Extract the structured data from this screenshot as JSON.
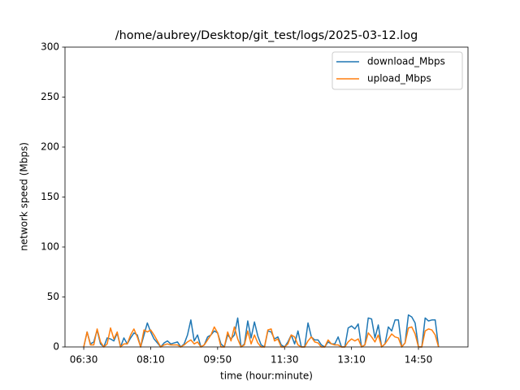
{
  "chart_data": {
    "type": "line",
    "title": "/home/aubrey/Desktop/git_test/logs/2025-03-12.log",
    "xlabel": "time (hour:minute)",
    "ylabel": "network speed (Mbps)",
    "x": [
      "06:30",
      "06:35",
      "06:40",
      "06:45",
      "06:50",
      "06:55",
      "07:00",
      "07:05",
      "07:10",
      "07:15",
      "07:20",
      "07:25",
      "07:30",
      "07:35",
      "07:40",
      "07:45",
      "07:50",
      "07:55",
      "08:00",
      "08:05",
      "08:10",
      "08:15",
      "08:20",
      "08:25",
      "08:30",
      "08:35",
      "08:40",
      "08:45",
      "08:50",
      "08:55",
      "09:00",
      "09:05",
      "09:10",
      "09:15",
      "09:20",
      "09:25",
      "09:30",
      "09:35",
      "09:40",
      "09:45",
      "09:50",
      "09:55",
      "10:00",
      "10:05",
      "10:10",
      "10:15",
      "10:20",
      "10:25",
      "10:30",
      "10:35",
      "10:40",
      "10:45",
      "10:50",
      "10:55",
      "11:00",
      "11:05",
      "11:10",
      "11:15",
      "11:20",
      "11:25",
      "11:30",
      "11:35",
      "11:40",
      "11:45",
      "11:50",
      "11:55",
      "12:00",
      "12:05",
      "12:10",
      "12:15",
      "12:20",
      "12:25",
      "12:30",
      "12:35",
      "12:40",
      "12:45",
      "12:50",
      "12:55",
      "13:00",
      "13:05",
      "13:10",
      "13:15",
      "13:20",
      "13:25",
      "13:30",
      "13:35",
      "13:40",
      "13:45",
      "13:50",
      "13:55",
      "14:00",
      "14:05",
      "14:10",
      "14:15",
      "14:20",
      "14:25",
      "14:30",
      "14:35",
      "14:40",
      "14:45",
      "14:50",
      "14:55",
      "15:00",
      "15:05",
      "15:10",
      "15:15",
      "15:20"
    ],
    "series": [
      {
        "name": "download_Mbps",
        "color": "#1f77b4",
        "values": [
          0,
          15,
          3,
          5,
          17,
          3,
          0,
          9,
          8,
          6,
          14,
          0,
          9,
          3,
          9,
          14,
          12,
          0,
          12,
          24,
          15,
          8,
          4,
          0,
          4,
          6,
          3,
          4,
          5,
          0,
          3,
          12,
          27,
          6,
          12,
          0,
          2,
          10,
          12,
          16,
          14,
          3,
          0,
          12,
          8,
          12,
          29,
          0,
          3,
          26,
          9,
          25,
          11,
          2,
          0,
          16,
          15,
          8,
          10,
          2,
          0,
          5,
          12,
          3,
          16,
          0,
          0,
          24,
          10,
          7,
          7,
          2,
          0,
          5,
          3,
          3,
          10,
          0,
          0,
          19,
          21,
          18,
          23,
          0,
          2,
          29,
          28,
          9,
          22,
          0,
          3,
          20,
          16,
          27,
          27,
          0,
          4,
          32,
          30,
          24,
          0,
          0,
          29,
          26,
          27,
          27,
          0
        ]
      },
      {
        "name": "upload_Mbps",
        "color": "#ff7f0e",
        "values": [
          0,
          15,
          2,
          2,
          18,
          5,
          0,
          3,
          19,
          8,
          15,
          0,
          3,
          3,
          12,
          18,
          10,
          0,
          17,
          15,
          17,
          12,
          6,
          0,
          2,
          3,
          2,
          2,
          2,
          0,
          2,
          5,
          7,
          3,
          5,
          0,
          2,
          7,
          12,
          20,
          14,
          0,
          0,
          15,
          6,
          20,
          8,
          0,
          2,
          16,
          3,
          12,
          4,
          0,
          0,
          17,
          18,
          6,
          8,
          0,
          0,
          3,
          12,
          10,
          2,
          0,
          0,
          6,
          10,
          5,
          4,
          0,
          0,
          7,
          3,
          2,
          2,
          0,
          0,
          5,
          8,
          6,
          8,
          0,
          2,
          14,
          10,
          5,
          12,
          0,
          3,
          8,
          13,
          10,
          9,
          0,
          4,
          19,
          20,
          13,
          0,
          0,
          16,
          18,
          17,
          12,
          0
        ]
      }
    ],
    "xlim": [
      "06:02",
      "16:04"
    ],
    "xticks": [
      "06:30",
      "08:10",
      "09:50",
      "11:30",
      "13:10",
      "14:50"
    ],
    "ylim": [
      0,
      300
    ],
    "yticks": [
      0,
      50,
      100,
      150,
      200,
      250,
      300
    ],
    "legend": "upper right"
  }
}
